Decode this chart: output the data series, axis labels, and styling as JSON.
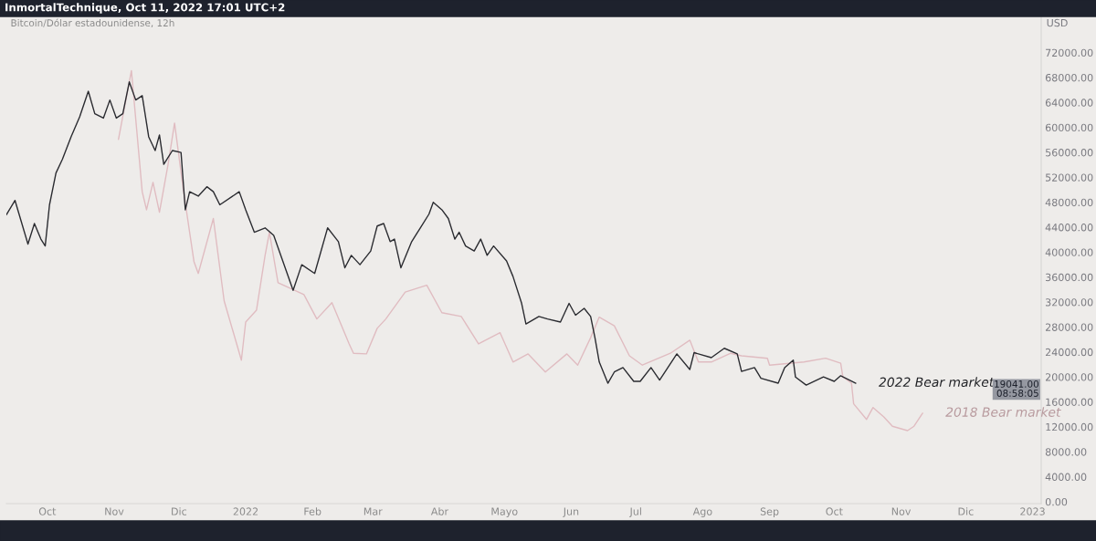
{
  "chart_data": {
    "type": "line",
    "title": "InmortalTechnique, Oct 11, 2022 17:01 UTC+2",
    "subtitle": "Bitcoin/Dólar estadounidense, 12h",
    "ylabel": "USD",
    "series": [
      {
        "name": "2018 Bear market",
        "color": "#e0bcc1",
        "x": [
          "2021-11-03",
          "2021-11-09",
          "2021-11-14",
          "2021-11-16",
          "2021-11-19",
          "2021-11-22",
          "2021-11-26",
          "2021-11-29",
          "2021-12-03",
          "2021-12-08",
          "2021-12-10",
          "2021-12-17",
          "2021-12-22",
          "2021-12-30",
          "2022-01-01",
          "2022-01-06",
          "2022-01-10",
          "2022-01-12",
          "2022-01-16",
          "2022-01-28",
          "2022-02-03",
          "2022-02-10",
          "2022-02-18",
          "2022-02-20",
          "2022-02-26",
          "2022-03-03",
          "2022-03-07",
          "2022-03-16",
          "2022-03-26",
          "2022-04-02",
          "2022-04-11",
          "2022-04-19",
          "2022-04-29",
          "2022-05-05",
          "2022-05-12",
          "2022-05-20",
          "2022-05-30",
          "2022-06-04",
          "2022-06-10",
          "2022-06-14",
          "2022-06-21",
          "2022-06-28",
          "2022-07-04",
          "2022-07-17",
          "2022-07-26",
          "2022-07-30",
          "2022-08-05",
          "2022-08-14",
          "2022-08-19",
          "2022-08-31",
          "2022-09-01",
          "2022-09-17",
          "2022-09-27",
          "2022-10-04",
          "2022-10-05",
          "2022-10-09",
          "2022-10-10",
          "2022-10-16",
          "2022-10-19",
          "2022-10-24",
          "2022-10-28",
          "2022-11-04",
          "2022-11-07",
          "2022-11-11"
        ],
        "values": [
          58100,
          69100,
          49700,
          46800,
          51200,
          46400,
          54100,
          60700,
          50200,
          38500,
          36600,
          45400,
          32200,
          22700,
          28800,
          30700,
          39500,
          43200,
          35100,
          33200,
          29300,
          31900,
          25300,
          23800,
          23700,
          27800,
          29300,
          33600,
          34700,
          30300,
          29700,
          25300,
          27100,
          22400,
          23700,
          20800,
          23700,
          21900,
          26300,
          29600,
          28200,
          23400,
          21900,
          23800,
          25900,
          22400,
          22400,
          23800,
          23400,
          23000,
          21900,
          22400,
          23000,
          22200,
          20000,
          19000,
          15700,
          13200,
          15100,
          13600,
          12100,
          11400,
          12100,
          14200
        ]
      },
      {
        "name": "2022 Bear market",
        "color": "#2a2b30",
        "x": [
          "2021-09-12",
          "2021-09-16",
          "2021-09-22",
          "2021-09-25",
          "2021-09-28",
          "2021-09-30",
          "2021-10-02",
          "2021-10-05",
          "2021-10-08",
          "2021-10-12",
          "2021-10-16",
          "2021-10-20",
          "2021-10-23",
          "2021-10-27",
          "2021-10-30",
          "2021-11-02",
          "2021-11-05",
          "2021-11-08",
          "2021-11-11",
          "2021-11-14",
          "2021-11-17",
          "2021-11-20",
          "2021-11-22",
          "2021-11-24",
          "2021-11-28",
          "2021-12-02",
          "2021-12-04",
          "2021-12-06",
          "2021-12-10",
          "2021-12-14",
          "2021-12-17",
          "2021-12-20",
          "2021-12-29",
          "2022-01-01",
          "2022-01-05",
          "2022-01-10",
          "2022-01-14",
          "2022-01-18",
          "2022-01-23",
          "2022-01-27",
          "2022-02-02",
          "2022-02-08",
          "2022-02-13",
          "2022-02-16",
          "2022-02-19",
          "2022-02-23",
          "2022-02-28",
          "2022-03-03",
          "2022-03-06",
          "2022-03-09",
          "2022-03-11",
          "2022-03-14",
          "2022-03-19",
          "2022-03-23",
          "2022-03-27",
          "2022-03-29",
          "2022-04-02",
          "2022-04-05",
          "2022-04-08",
          "2022-04-10",
          "2022-04-13",
          "2022-04-17",
          "2022-04-20",
          "2022-04-23",
          "2022-04-26",
          "2022-05-02",
          "2022-05-05",
          "2022-05-09",
          "2022-05-11",
          "2022-05-17",
          "2022-05-21",
          "2022-05-27",
          "2022-05-31",
          "2022-06-03",
          "2022-06-07",
          "2022-06-10",
          "2022-06-12",
          "2022-06-14",
          "2022-06-18",
          "2022-06-21",
          "2022-06-25",
          "2022-06-30",
          "2022-07-03",
          "2022-07-08",
          "2022-07-12",
          "2022-07-20",
          "2022-07-26",
          "2022-07-28",
          "2022-08-05",
          "2022-08-11",
          "2022-08-17",
          "2022-08-19",
          "2022-08-25",
          "2022-08-28",
          "2022-09-05",
          "2022-09-08",
          "2022-09-12",
          "2022-09-13",
          "2022-09-18",
          "2022-09-26",
          "2022-10-01",
          "2022-10-04",
          "2022-10-11"
        ],
        "values": [
          46000,
          48300,
          41300,
          44600,
          42100,
          41000,
          47600,
          52700,
          54900,
          58500,
          61700,
          65800,
          62200,
          61500,
          64400,
          61500,
          62200,
          67300,
          64400,
          65100,
          58500,
          56300,
          58800,
          54100,
          56300,
          56000,
          46800,
          49700,
          49000,
          50500,
          49700,
          47600,
          49700,
          46800,
          43200,
          43900,
          42700,
          38800,
          33900,
          38000,
          36600,
          43900,
          41700,
          37500,
          39500,
          38000,
          40200,
          44200,
          44600,
          41700,
          42100,
          37500,
          41700,
          43900,
          46100,
          48000,
          46800,
          45400,
          42100,
          43200,
          41000,
          40200,
          42100,
          39500,
          41000,
          38600,
          36100,
          31800,
          28500,
          29700,
          29300,
          28800,
          31800,
          29900,
          31000,
          29700,
          26300,
          22400,
          19000,
          20800,
          21500,
          19300,
          19300,
          21500,
          19500,
          23700,
          21200,
          23900,
          23100,
          24600,
          23700,
          20900,
          21500,
          19800,
          19000,
          21500,
          22700,
          20000,
          18700,
          20000,
          19300,
          20200,
          19000
        ]
      }
    ],
    "xlim": [
      "2021-09-12",
      "2023-01-05"
    ],
    "xticks": [
      {
        "value": "2021-10-01",
        "label": "Oct"
      },
      {
        "value": "2021-11-01",
        "label": "Nov"
      },
      {
        "value": "2021-12-01",
        "label": "Dic"
      },
      {
        "value": "2022-01-01",
        "label": "2022"
      },
      {
        "value": "2022-02-01",
        "label": "Feb"
      },
      {
        "value": "2022-03-01",
        "label": "Mar"
      },
      {
        "value": "2022-04-01",
        "label": "Abr"
      },
      {
        "value": "2022-05-01",
        "label": "Mayo"
      },
      {
        "value": "2022-06-01",
        "label": "Jun"
      },
      {
        "value": "2022-07-01",
        "label": "Jul"
      },
      {
        "value": "2022-08-01",
        "label": "Ago"
      },
      {
        "value": "2022-09-01",
        "label": "Sep"
      },
      {
        "value": "2022-10-01",
        "label": "Oct"
      },
      {
        "value": "2022-11-01",
        "label": "Nov"
      },
      {
        "value": "2022-12-01",
        "label": "Dic"
      },
      {
        "value": "2023-01-01",
        "label": "2023"
      }
    ],
    "ylim": [
      -300,
      77800
    ],
    "yticks": [
      {
        "value": 0,
        "label": "0.00"
      },
      {
        "value": 4000,
        "label": "4000.00"
      },
      {
        "value": 8000,
        "label": "8000.00"
      },
      {
        "value": 12000,
        "label": "12000.00"
      },
      {
        "value": 16000,
        "label": "16000.00"
      },
      {
        "value": 20000,
        "label": "20000.00"
      },
      {
        "value": 24000,
        "label": "24000.00"
      },
      {
        "value": 28000,
        "label": "28000.00"
      },
      {
        "value": 32000,
        "label": "32000.00"
      },
      {
        "value": 36000,
        "label": "36000.00"
      },
      {
        "value": 40000,
        "label": "40000.00"
      },
      {
        "value": 44000,
        "label": "44000.00"
      },
      {
        "value": 48000,
        "label": "48000.00"
      },
      {
        "value": 52000,
        "label": "52000.00"
      },
      {
        "value": 56000,
        "label": "56000.00"
      },
      {
        "value": 60000,
        "label": "60000.00"
      },
      {
        "value": 64000,
        "label": "64000.00"
      },
      {
        "value": 68000,
        "label": "68000.00"
      },
      {
        "value": 72000,
        "label": "72000.00"
      }
    ],
    "annotations": [
      "19041.00\n08:58:05"
    ],
    "grid": false,
    "legend": false,
    "marker": "none",
    "line_style": "solid"
  }
}
